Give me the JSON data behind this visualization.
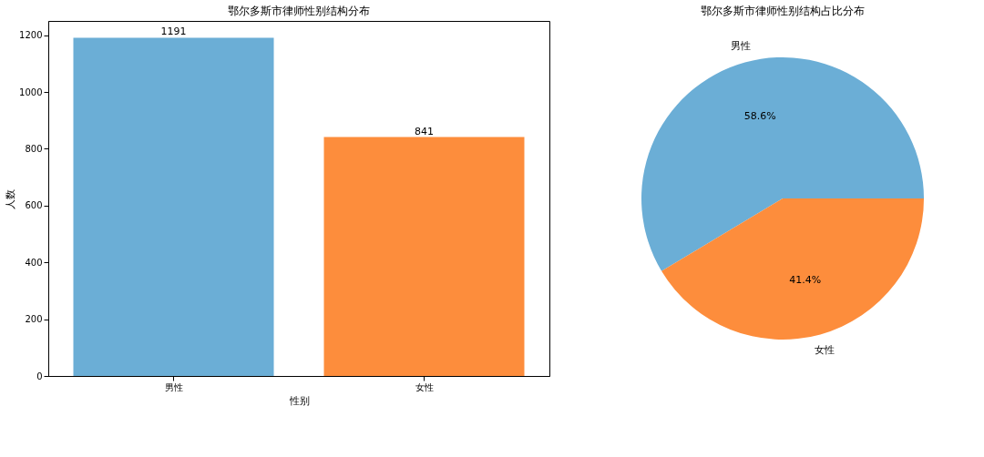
{
  "chart_data": [
    {
      "type": "bar",
      "title": "鄂尔多斯市律师性别结构分布",
      "xlabel": "性别",
      "ylabel": "人数",
      "categories": [
        "男性",
        "女性"
      ],
      "values": [
        1191,
        841
      ],
      "colors": [
        "#6baed6",
        "#fd8d3c"
      ],
      "ylim": [
        0,
        1250
      ],
      "yticks": [
        0,
        200,
        400,
        600,
        800,
        1000,
        1200
      ],
      "data_labels": true,
      "grid": false
    },
    {
      "type": "pie",
      "title": "鄂尔多斯市律师性别结构占比分布",
      "categories": [
        "男性",
        "女性"
      ],
      "values": [
        58.6,
        41.4
      ],
      "colors": [
        "#6baed6",
        "#fd8d3c"
      ],
      "value_labels": [
        "58.6%",
        "41.4%"
      ]
    }
  ]
}
